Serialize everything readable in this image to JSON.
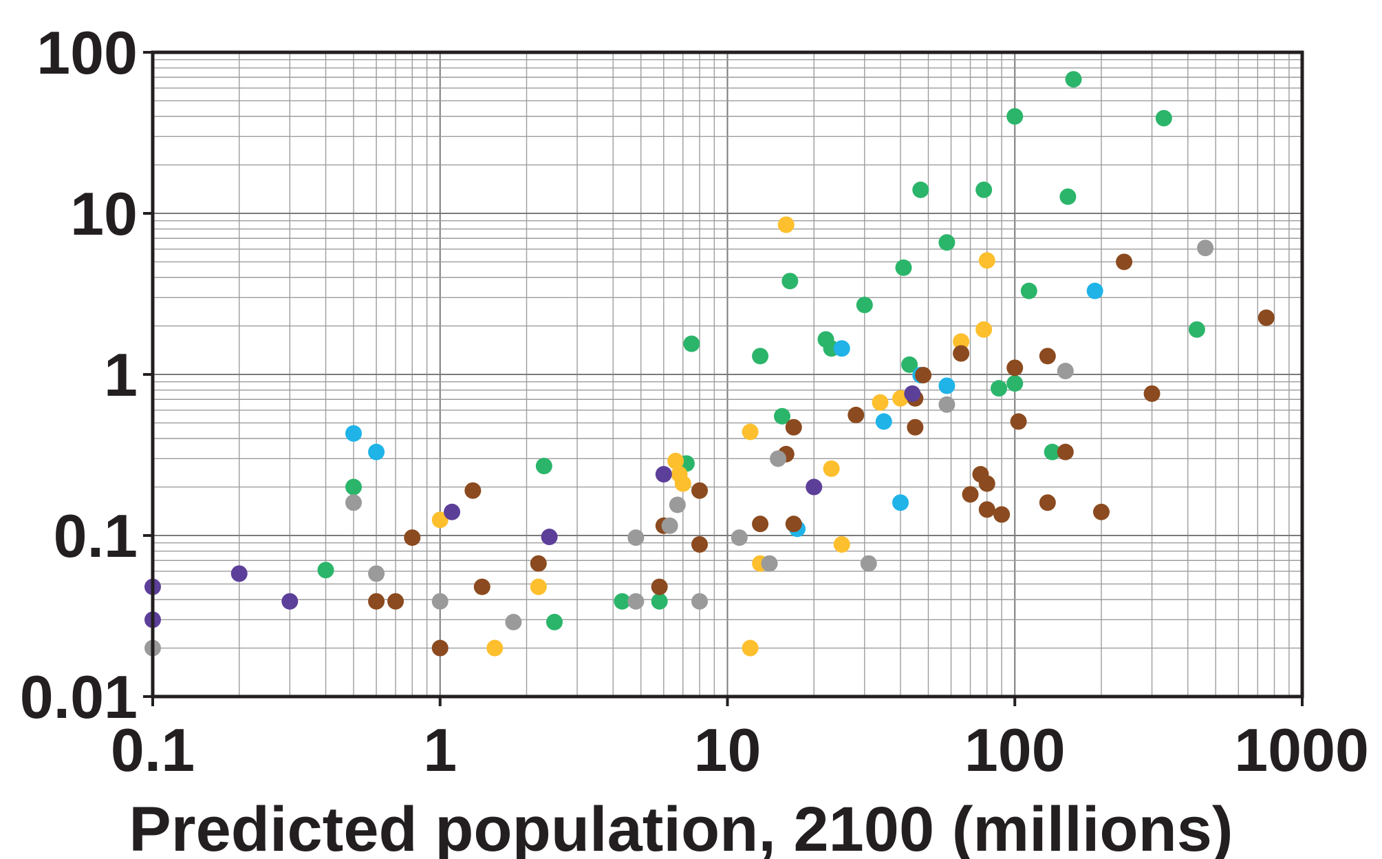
{
  "chart_data": {
    "type": "scatter",
    "title": "",
    "xlabel": "Predicted population, 2100 (millions)",
    "ylabel": "",
    "xscale": "log",
    "yscale": "log",
    "xlim": [
      0.1,
      1000
    ],
    "ylim": [
      0.01,
      100
    ],
    "grid": true,
    "legend": "none",
    "x_ticks": [
      "0.1",
      "1",
      "10",
      "100",
      "1000"
    ],
    "y_ticks": [
      "0.01",
      "0.1",
      "1",
      "10",
      "100"
    ],
    "colors": {
      "green": "#2bb56a",
      "blue": "#1fb3e8",
      "yellow": "#fdbf2d",
      "brown": "#8b4a1f",
      "gray": "#9a9a9a",
      "purple": "#5c3f99"
    },
    "series": [
      {
        "color": "green",
        "points": [
          [
            160,
            68
          ],
          [
            100,
            40
          ],
          [
            330,
            39
          ],
          [
            47,
            14
          ],
          [
            78,
            14
          ],
          [
            153,
            12.7
          ],
          [
            58,
            6.6
          ],
          [
            41,
            4.6
          ],
          [
            16.5,
            3.8
          ],
          [
            112,
            3.3
          ],
          [
            30,
            2.7
          ],
          [
            430,
            1.9
          ],
          [
            7.5,
            1.55
          ],
          [
            22,
            1.65
          ],
          [
            23,
            1.45
          ],
          [
            13,
            1.3
          ],
          [
            43,
            1.15
          ],
          [
            88,
            0.82
          ],
          [
            100,
            0.88
          ],
          [
            15.5,
            0.55
          ],
          [
            135,
            0.33
          ],
          [
            7.2,
            0.28
          ],
          [
            2.3,
            0.27
          ],
          [
            0.5,
            0.2
          ],
          [
            0.4,
            0.061
          ],
          [
            4.3,
            0.039
          ],
          [
            5.8,
            0.039
          ],
          [
            2.5,
            0.029
          ]
        ]
      },
      {
        "color": "blue",
        "points": [
          [
            190,
            3.3
          ],
          [
            25,
            1.45
          ],
          [
            47,
            0.99
          ],
          [
            58,
            0.85
          ],
          [
            35,
            0.51
          ],
          [
            0.5,
            0.43
          ],
          [
            0.6,
            0.33
          ],
          [
            40,
            0.16
          ],
          [
            17.5,
            0.11
          ]
        ]
      },
      {
        "color": "yellow",
        "points": [
          [
            16,
            8.5
          ],
          [
            80,
            5.1
          ],
          [
            65,
            1.6
          ],
          [
            78,
            1.9
          ],
          [
            34,
            0.67
          ],
          [
            40,
            0.71
          ],
          [
            12,
            0.44
          ],
          [
            23,
            0.26
          ],
          [
            6.6,
            0.29
          ],
          [
            6.8,
            0.24
          ],
          [
            7,
            0.21
          ],
          [
            1,
            0.125
          ],
          [
            25,
            0.088
          ],
          [
            13,
            0.067
          ],
          [
            2.2,
            0.048
          ],
          [
            1.55,
            0.02
          ],
          [
            12,
            0.02
          ]
        ]
      },
      {
        "color": "brown",
        "points": [
          [
            240,
            5
          ],
          [
            750,
            2.25
          ],
          [
            130,
            1.3
          ],
          [
            65,
            1.35
          ],
          [
            100,
            1.1
          ],
          [
            48,
            0.99
          ],
          [
            45,
            0.71
          ],
          [
            300,
            0.76
          ],
          [
            28,
            0.56
          ],
          [
            103,
            0.51
          ],
          [
            17,
            0.47
          ],
          [
            45,
            0.47
          ],
          [
            16,
            0.32
          ],
          [
            150,
            0.33
          ],
          [
            76,
            0.24
          ],
          [
            80,
            0.21
          ],
          [
            70,
            0.18
          ],
          [
            80,
            0.145
          ],
          [
            90,
            0.135
          ],
          [
            130,
            0.16
          ],
          [
            200,
            0.14
          ],
          [
            1.3,
            0.19
          ],
          [
            8,
            0.19
          ],
          [
            6,
            0.115
          ],
          [
            13,
            0.118
          ],
          [
            17,
            0.118
          ],
          [
            8,
            0.088
          ],
          [
            0.8,
            0.097
          ],
          [
            2.2,
            0.067
          ],
          [
            1.4,
            0.048
          ],
          [
            5.8,
            0.048
          ],
          [
            0.6,
            0.039
          ],
          [
            0.7,
            0.039
          ],
          [
            1,
            0.02
          ]
        ]
      },
      {
        "color": "gray",
        "points": [
          [
            460,
            6.1
          ],
          [
            150,
            1.05
          ],
          [
            58,
            0.65
          ],
          [
            15,
            0.3
          ],
          [
            6.7,
            0.155
          ],
          [
            6.3,
            0.115
          ],
          [
            4.8,
            0.097
          ],
          [
            11,
            0.097
          ],
          [
            0.5,
            0.16
          ],
          [
            0.6,
            0.058
          ],
          [
            14,
            0.067
          ],
          [
            31,
            0.067
          ],
          [
            1,
            0.039
          ],
          [
            4.8,
            0.039
          ],
          [
            8,
            0.039
          ],
          [
            1.8,
            0.029
          ],
          [
            0.1,
            0.02
          ]
        ]
      },
      {
        "color": "purple",
        "points": [
          [
            44,
            0.76
          ],
          [
            6,
            0.24
          ],
          [
            20,
            0.2
          ],
          [
            1.1,
            0.14
          ],
          [
            2.4,
            0.098
          ],
          [
            0.2,
            0.058
          ],
          [
            0.3,
            0.039
          ],
          [
            0.1,
            0.048
          ],
          [
            0.1,
            0.03
          ]
        ]
      }
    ]
  }
}
